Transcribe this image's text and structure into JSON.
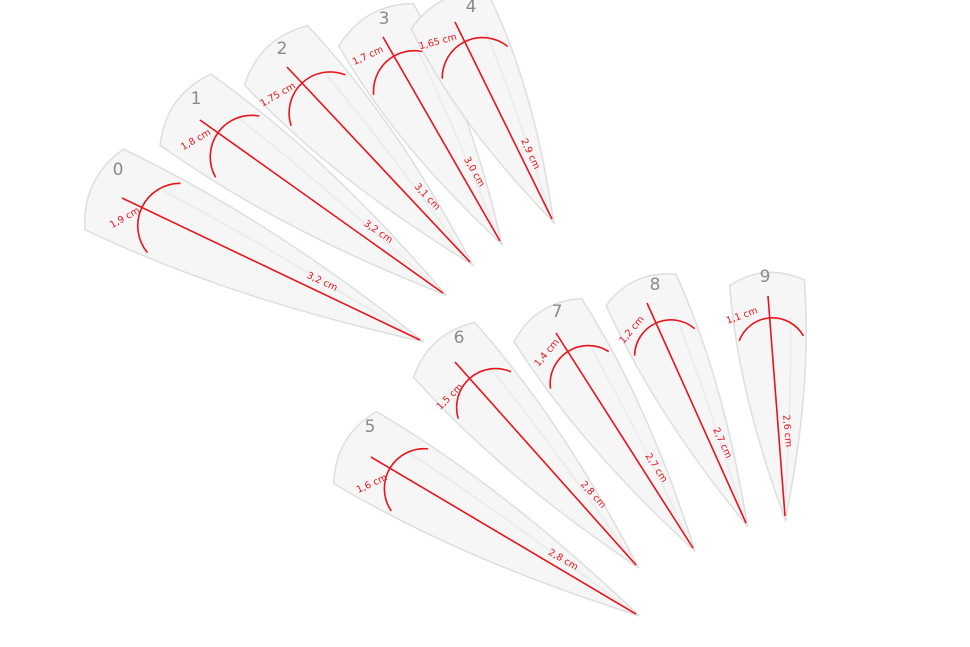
{
  "colors": {
    "measure": "#e8141b",
    "number": "#8a8a8a",
    "nail_fill": "#f6f6f6",
    "nail_edge": "#dedede"
  },
  "nails": [
    {
      "number": "0",
      "width_label": "1,9 cm",
      "length_label": "3,2 cm"
    },
    {
      "number": "1",
      "width_label": "1,8 cm",
      "length_label": "3,2 cm"
    },
    {
      "number": "2",
      "width_label": "1,75 cm",
      "length_label": "3,1 cm"
    },
    {
      "number": "3",
      "width_label": "1,7 cm",
      "length_label": "3,0 cm"
    },
    {
      "number": "4",
      "width_label": "1,65 cm",
      "length_label": "2,9 cm"
    },
    {
      "number": "5",
      "width_label": "1,6 cm",
      "length_label": "2,8 cm"
    },
    {
      "number": "6",
      "width_label": "1,5 cm",
      "length_label": "2,8 cm"
    },
    {
      "number": "7",
      "width_label": "1,4 cm",
      "length_label": "2,7 cm"
    },
    {
      "number": "8",
      "width_label": "1,2 cm",
      "length_label": "2,7 cm"
    },
    {
      "number": "9",
      "width_label": "1,1 cm",
      "length_label": "2,6 cm"
    }
  ]
}
